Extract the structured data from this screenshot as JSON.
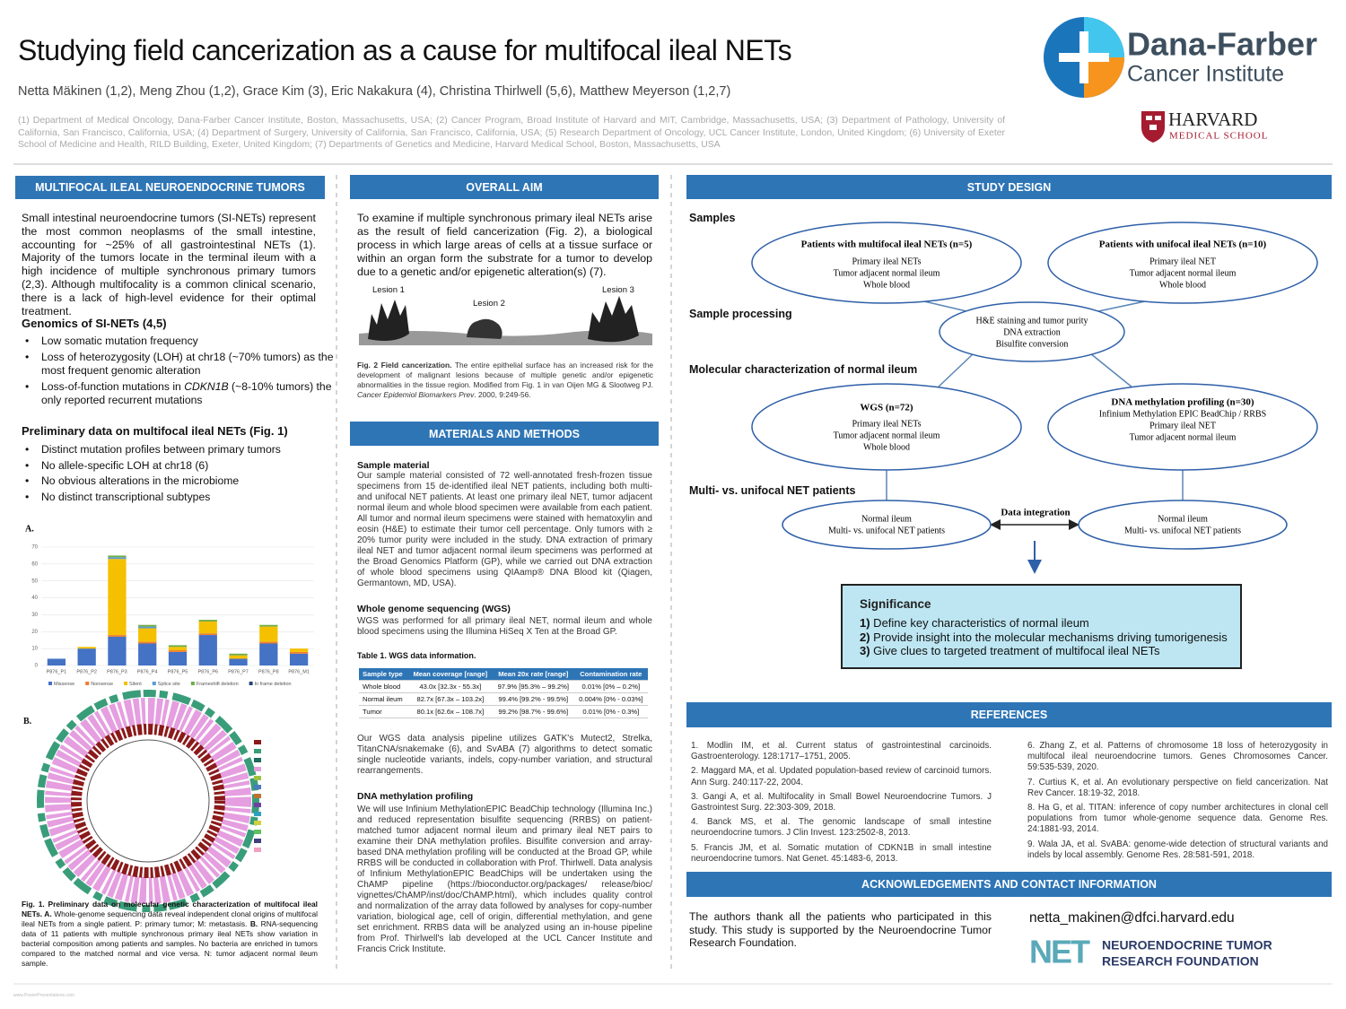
{
  "header": {
    "title": "Studying field cancerization as a cause for multifocal ileal NETs",
    "authors": "Netta Mäkinen (1,2), Meng Zhou (1,2), Grace Kim (3), Eric Nakakura (4), Christina Thirlwell (5,6), Matthew Meyerson (1,2,7)",
    "affiliations": "(1) Department of Medical Oncology, Dana-Farber Cancer Institute, Boston, Massachusetts, USA; (2) Cancer Program, Broad Institute of Harvard and MIT, Cambridge, Massachusetts, USA; (3) Department of Pathology, University of California, San Francisco, California, USA; (4) Department of Surgery, University of California, San Francisco, California, USA; (5) Research Department of Oncology, UCL Cancer Institute, London, United Kingdom; (6) University of Exeter School of Medicine and Health, RILD Building, Exeter, United Kingdom; (7) Departments of Genetics and Medicine, Harvard Medical School, Boston, Massachusetts, USA"
  },
  "logos": {
    "dana_farber": [
      "Dana-Farber",
      "Cancer Institute"
    ],
    "harvard": [
      "HARVARD",
      "MEDICAL SCHOOL"
    ],
    "net": [
      "NEUROENDOCRINE TUMOR",
      "RESEARCH FOUNDATION"
    ]
  },
  "intro": {
    "heading": "MULTIFOCAL ILEAL NEUROENDOCRINE TUMORS",
    "text": "Small intestinal neuroendocrine tumors (SI-NETs) represent the most common neoplasms of the small intestine, accounting for ~25% of all gastrointestinal NETs (1). Majority of the tumors locate in the terminal ileum with a high incidence of multiple synchronous primary tumors (2,3). Although multifocality is a common clinical scenario, there is a lack of high-level evidence for their optimal treatment.",
    "genomics_heading": "Genomics of SI-NETs (4,5)",
    "genomics": [
      [
        "Low somatic mutation frequency"
      ],
      [
        "Loss of heterozygosity (LOH) at chr18 (~70% tumors) as the most frequent genomic alteration"
      ],
      [
        "Loss-of-function mutations in ",
        "CDKN1B",
        " (~8-10% tumors) the only reported recurrent mutations"
      ]
    ],
    "prelim_heading": "Preliminary data on multifocal ileal NETs (Fig. 1)",
    "prelim": [
      "Distinct mutation profiles between primary tumors",
      "No allele-specific LOH at chr18 (6)",
      "No obvious alterations in the microbiome",
      "No distinct transcriptional subtypes"
    ],
    "panel_a": "A.",
    "panel_b": "B.",
    "caption": [
      "Fig. 1. Preliminary data on molecular genetic characterization of multifocal ileal NETs. A.",
      " Whole-genome sequencing data reveal independent clonal origins of multifocal ileal NETs from a single patient. P: primary tumor; M: metastasis. ",
      "B.",
      " RNA-sequencing data of 11 patients with multiple synchronous primary ileal NETs show variation in bacterial composition among patients and samples. No bacteria are enriched in tumors compared to the matched normal and vice versa. N: tumor adjacent normal ileum sample."
    ]
  },
  "chart_data": {
    "type": "bar",
    "stacked": true,
    "categories": [
      "P876_P1",
      "P876_P2",
      "P876_P3",
      "P876_P4",
      "P876_P5",
      "P876_P6",
      "P876_P7",
      "P876_P8",
      "P876_M1"
    ],
    "series": [
      {
        "name": "Missense",
        "color": "#4472c4",
        "values": [
          4,
          10,
          17,
          13,
          8,
          18,
          4,
          13,
          7
        ]
      },
      {
        "name": "Nonsense",
        "color": "#ed7d31",
        "values": [
          0,
          0,
          1,
          1,
          1,
          1,
          0,
          1,
          1
        ]
      },
      {
        "name": "Silent",
        "color": "#f5c000",
        "values": [
          0,
          1,
          45,
          8,
          2,
          7,
          2,
          9,
          2
        ]
      },
      {
        "name": "Splice site",
        "color": "#5b9bd5",
        "values": [
          0,
          0,
          1,
          1,
          0,
          0,
          0,
          0,
          0
        ]
      },
      {
        "name": "Frameshift deletion",
        "color": "#70ad47",
        "values": [
          0,
          0,
          1,
          1,
          1,
          1,
          1,
          1,
          0
        ]
      },
      {
        "name": "In frame deletion",
        "color": "#264478",
        "values": [
          0,
          0,
          0,
          0,
          0,
          0,
          0,
          0,
          0
        ]
      }
    ],
    "ylim": [
      0,
      70
    ],
    "yticks": [
      0,
      10,
      20,
      30,
      40,
      50,
      60,
      70
    ],
    "grid": true
  },
  "aim": {
    "heading": "OVERALL AIM",
    "text": "To examine if multiple synchronous primary ileal NETs arise as the result of field cancerization (Fig. 2), a biological process in which large areas of cells at a tissue surface or within an organ form the substrate for a tumor to develop due to a genetic and/or epigenetic alteration(s) (7).",
    "lesions": [
      "Lesion 1",
      "Lesion 2",
      "Lesion 3"
    ],
    "caption": [
      "Fig. 2 Field cancerization.",
      " The entire epithelial surface has an increased risk for the development of malignant lesions because of multiple genetic and/or epigenetic abnormalities in the tissue region. Modified from Fig. 1 in van Oijen MG & Slootweg PJ. ",
      "Cancer Epidemiol Biomarkers Prev",
      ". 2000, 9:249-56."
    ]
  },
  "methods": {
    "heading": "MATERIALS AND METHODS",
    "sample_heading": "Sample material",
    "sample_text": "Our sample material consisted of 72 well-annotated fresh-frozen tissue specimens from 15 de-identified ileal NET patients, including both multi- and unifocal NET patients. At least one primary ileal NET, tumor adjacent normal ileum and whole blood specimen were available from each patient. All tumor and normal ileum specimens were stained with hematoxylin and eosin (H&E) to estimate their tumor cell percentage. Only tumors with ≥ 20% tumor purity were included in the study. DNA extraction of primary ileal NET and tumor adjacent normal ileum specimens was performed at the Broad Genomics Platform (GP), while we carried out DNA extraction of whole blood specimens using QIAamp® DNA Blood kit (Qiagen, Germantown, MD, USA).",
    "wgs_heading": "Whole genome sequencing (WGS)",
    "wgs_text": "WGS was performed for all primary ileal NET, normal ileum and whole blood specimens using the Illumina HiSeq X Ten at the Broad GP.",
    "table_caption": "Table 1. WGS data information.",
    "table": {
      "header": [
        "Sample type",
        "Mean coverage [range]",
        "Mean 20x rate [range]",
        "Contamination rate"
      ],
      "rows": [
        [
          "Whole blood",
          "43.0x [32.3x - 55.3x]",
          "97.9% [95.3% – 99.2%]",
          "0.01% [0% – 0.2%]"
        ],
        [
          "Normal ileum",
          "82.7x [67.3x – 103.2x]",
          "99.4% [99.2% - 99.5%]",
          "0.004% [0% - 0.03%]"
        ],
        [
          "Tumor",
          "80.1x [62.6x – 108.7x]",
          "99.2% [98.7% - 99.6%]",
          "0.01% [0% - 0.3%]"
        ]
      ]
    },
    "pipeline_text": "Our WGS data analysis pipeline utilizes GATK's Mutect2, Strelka, TitanCNA/snakemake (6), and SvABA (7) algorithms to detect somatic single nucleotide variants, indels, copy-number variation, and structural rearrangements.",
    "meth_heading": "DNA methylation profiling",
    "meth_text": "We will use Infinium MethylationEPIC BeadChip technology (Illumina Inc.) and reduced representation bisulfite sequencing (RRBS) on patient-matched tumor adjacent normal ileum and primary ileal NET pairs to examine their DNA methylation profiles. Bisulfite conversion and array-based DNA methylation profiling will be conducted at the Broad GP, while RRBS will be conducted in collaboration with Prof. Thirlwell. Data analysis of Infinium MethylationEPIC BeadChips will be undertaken using the ChAMP pipeline (https://bioconductor.org/packages/ release/bioc/ vignettes/ChAMP/inst/doc/ChAMP.html), which includes quality control and normalization of the array data followed by analyses for copy-number variation, biological age, cell of origin, differential methylation, and gene set enrichment. RRBS data will be analyzed using an in-house pipeline from Prof. Thirlwell's lab developed at the UCL Cancer Institute and Francis Crick Institute."
  },
  "study_design": {
    "heading": "STUDY DESIGN",
    "stages": [
      "Samples",
      "Sample processing",
      "Molecular characterization of normal ileum",
      "Multi- vs. unifocal NET patients"
    ],
    "nodes": [
      {
        "title": "Patients with multifocal ileal NETs (n=5)",
        "lines": [
          "Primary ileal NETs",
          "Tumor adjacent normal ileum",
          "Whole blood"
        ]
      },
      {
        "title": "Patients with unifocal ileal NETs (n=10)",
        "lines": [
          "Primary ileal NET",
          "Tumor adjacent normal ileum",
          "Whole blood"
        ]
      },
      {
        "lines": [
          "H&E staining and tumor purity",
          "DNA extraction",
          "Bisulfite  conversion"
        ]
      },
      {
        "title": "WGS (n=72)",
        "lines": [
          "Primary ileal NETs",
          "Tumor adjacent normal ileum",
          "Whole blood"
        ]
      },
      {
        "title": "DNA methylation  profiling (n=30)",
        "lines": [
          "Infinium  Methylation  EPIC BeadChip / RRBS",
          "Primary ileal NET",
          "Tumor adjacent normal ileum"
        ]
      },
      {
        "lines": [
          "Normal ileum",
          "Multi-  vs. unifocal NET patients"
        ]
      },
      {
        "lines": [
          "Normal ileum",
          "Multi-  vs. unifocal NET patients"
        ]
      }
    ],
    "integration": "Data integration",
    "significance": {
      "title": "Significance",
      "items": [
        [
          "1)",
          " Define key characteristics of normal ileum"
        ],
        [
          "2)",
          " Provide insight into the molecular mechanisms driving tumorigenesis"
        ],
        [
          "3)",
          " Give clues to targeted treatment of multifocal ileal NETs"
        ]
      ]
    }
  },
  "references": {
    "heading": "REFERENCES",
    "items": [
      "1. Modlin IM, et al. Current status of gastrointestinal carcinoids. Gastroenterology. 128:1717–1751, 2005.",
      "2. Maggard MA, et al. Updated population-based review of carcinoid tumors. Ann Surg. 240:117-22, 2004.",
      "3. Gangi A, et al. Multifocality in Small Bowel Neuroendocrine Tumors. J Gastrointest Surg. 22:303-309, 2018.",
      "4. Banck MS, et al. The genomic landscape of small intestine neuroendocrine tumors. J Clin Invest. 123:2502-8, 2013.",
      "5. Francis JM, et al. Somatic mutation of CDKN1B in small intestine neuroendocrine tumors. Nat Genet. 45:1483-6, 2013.",
      "6. Zhang Z, et al. Patterns of chromosome 18 loss of heterozygosity in multifocal ileal neuroendocrine tumors. Genes Chromosomes Cancer. 59:535-539, 2020.",
      "7. Curtius K, et al. An evolutionary perspective on field cancerization. Nat Rev Cancer. 18:19-32, 2018.",
      "8. Ha G, et al. TITAN: inference of copy number architectures in clonal cell populations from tumor whole-genome sequence data. Genome Res. 24:1881-93, 2014.",
      "9. Wala JA, et al. SvABA: genome-wide detection of structural variants and indels by local assembly. Genome Res. 28:581-591, 2018."
    ]
  },
  "acknowledgements": {
    "heading": "ACKNOWLEDGEMENTS AND CONTACT INFORMATION",
    "text": "The authors thank all the patients who participated in this study. This study is supported by the Neuroendocrine Tumor Research Foundation.",
    "email": "netta_makinen@dfci.harvard.edu"
  },
  "footer": "www.PosterPresentations.com"
}
